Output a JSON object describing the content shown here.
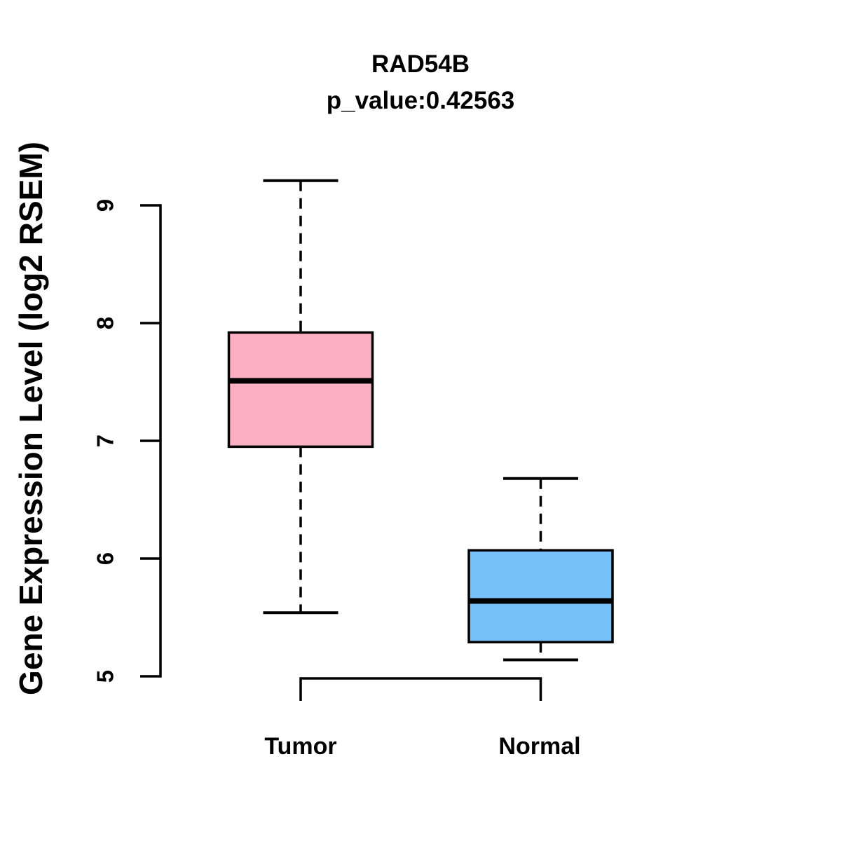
{
  "title": "RAD54B",
  "subtitle": "p_value:0.42563",
  "y_axis_label": "Gene Expression Level (log2 RSEM)",
  "p_value": "0.42563",
  "gene": "RAD54B",
  "colors": {
    "tumor_fill": "#FBAFC2",
    "normal_fill": "#75C0F8",
    "line": "#000000",
    "background": "#FFFFFF"
  },
  "chart_data": {
    "type": "boxplot",
    "title": "RAD54B",
    "subtitle": "p_value:0.42563",
    "xlabel": "",
    "ylabel": "Gene Expression Level (log2 RSEM)",
    "categories": [
      "Tumor",
      "Normal"
    ],
    "yticks": [
      5,
      6,
      7,
      8,
      9
    ],
    "ylim": [
      4.8,
      9.3
    ],
    "grid": false,
    "legend": false,
    "whisker_style": "dashed",
    "series": [
      {
        "name": "Tumor",
        "fill": "#FBAFC2",
        "min": 5.54,
        "q1": 6.95,
        "median": 7.51,
        "q3": 7.92,
        "max": 9.21
      },
      {
        "name": "Normal",
        "fill": "#75C0F8",
        "min": 5.14,
        "q1": 5.29,
        "median": 5.64,
        "q3": 6.07,
        "max": 6.68
      }
    ]
  }
}
